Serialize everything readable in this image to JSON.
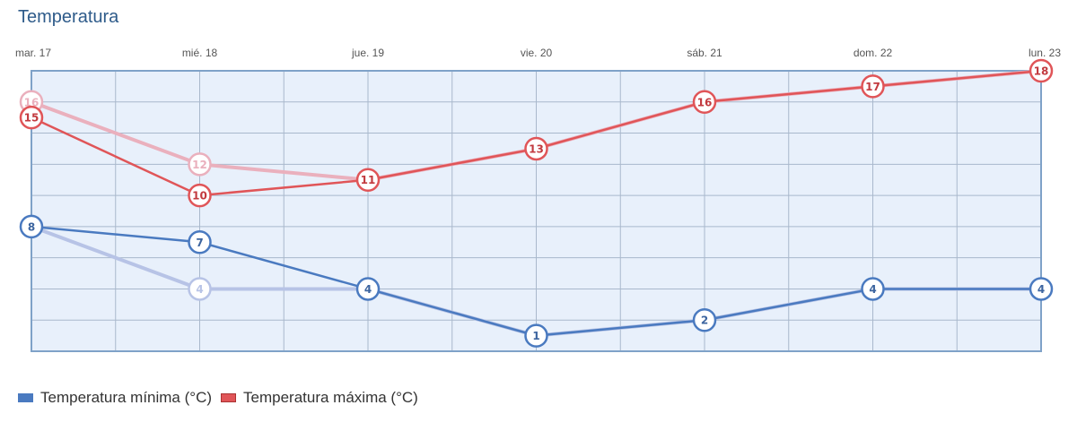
{
  "chart_data": {
    "type": "line",
    "title": "Temperatura",
    "categories": [
      "mar. 17",
      "mié. 18",
      "jue. 19",
      "vie. 20",
      "sáb. 21",
      "dom. 22",
      "lun. 23"
    ],
    "ylim": [
      0,
      18
    ],
    "grid": true,
    "legend_position": "bottom-left",
    "series": [
      {
        "name": "Temperatura mínima (°C)",
        "color": "#4a7ac0",
        "values": [
          8,
          7,
          4,
          1,
          2,
          4,
          4
        ],
        "previous_values": [
          8,
          4,
          4,
          1,
          2,
          4,
          4
        ]
      },
      {
        "name": "Temperatura máxima (°C)",
        "color": "#e05558",
        "values": [
          15,
          10,
          11,
          13,
          16,
          17,
          18
        ],
        "previous_values": [
          16,
          12,
          11,
          13,
          16,
          17,
          18
        ]
      }
    ]
  }
}
